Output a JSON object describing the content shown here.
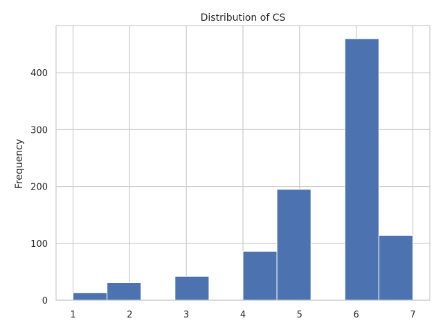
{
  "chart_data": {
    "type": "bar",
    "title": "Distribution of CS",
    "xlabel": "",
    "ylabel": "Frequency",
    "bin_edges": [
      1.0,
      1.6,
      2.2,
      2.8,
      3.4,
      4.0,
      4.6,
      5.2,
      5.8,
      6.4,
      7.0
    ],
    "values": [
      13,
      31,
      0,
      42,
      0,
      86,
      195,
      0,
      460,
      114
    ],
    "xlim": [
      0.7,
      7.3
    ],
    "ylim": [
      0,
      483
    ],
    "xticks": [
      1,
      2,
      3,
      4,
      5,
      6,
      7
    ],
    "yticks": [
      0,
      100,
      200,
      300,
      400
    ],
    "grid": true,
    "bar_color": "#4c72b0",
    "grid_color": "#cccccc"
  }
}
